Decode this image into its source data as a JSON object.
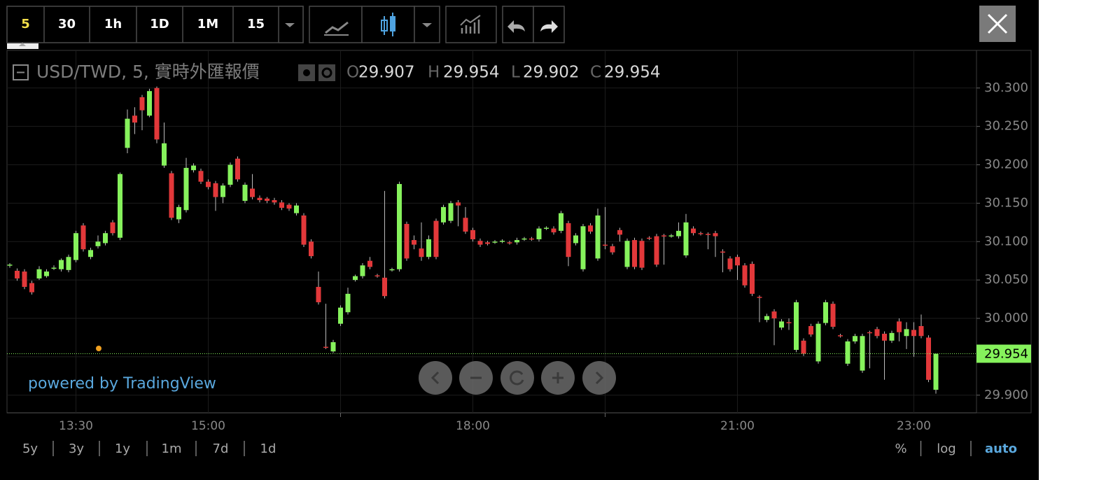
{
  "toolbar": {
    "intervals": [
      "5",
      "30",
      "1h",
      "1D",
      "1M",
      "15"
    ]
  },
  "chart_data": {
    "type": "candlestick",
    "title": "USD/TWD, 5, 實時外匯報價",
    "legend": [
      {
        "key": "O",
        "value": "29.907"
      },
      {
        "key": "H",
        "value": "29.954"
      },
      {
        "key": "L",
        "value": "29.902"
      },
      {
        "key": "C",
        "value": "29.954"
      }
    ],
    "categories": [
      null,
      null,
      null,
      null,
      null,
      null,
      null,
      null,
      null,
      "13:30",
      null,
      null,
      null,
      null,
      null,
      null,
      null,
      null,
      null,
      null,
      null,
      null,
      null,
      null,
      null,
      null,
      null,
      "15:00",
      null,
      null,
      null,
      null,
      null,
      null,
      null,
      null,
      null,
      null,
      null,
      null,
      null,
      null,
      null,
      null,
      null,
      null,
      null,
      null,
      null,
      null,
      null,
      null,
      null,
      null,
      null,
      null,
      null,
      null,
      null,
      null,
      null,
      null,
      null,
      "18:00",
      null,
      null,
      null,
      null,
      null,
      null,
      null,
      null,
      null,
      null,
      null,
      null,
      null,
      null,
      null,
      null,
      null,
      null,
      null,
      null,
      null,
      null,
      null,
      null,
      null,
      null,
      null,
      null,
      null,
      null,
      null,
      null,
      null,
      null,
      null,
      "21:00",
      null,
      null,
      null,
      null,
      null,
      null,
      null,
      null,
      null,
      null,
      null,
      null,
      null,
      null,
      null,
      null,
      null,
      null,
      null,
      null,
      null,
      null,
      null,
      "23:00",
      null,
      null,
      null
    ],
    "ohlc": [
      [
        30.069,
        30.072,
        30.066,
        30.07
      ],
      [
        30.062,
        30.065,
        30.049,
        30.052
      ],
      [
        30.061,
        30.064,
        30.038,
        30.041
      ],
      [
        30.046,
        30.049,
        30.031,
        30.034
      ],
      [
        30.052,
        30.068,
        30.05,
        30.064
      ],
      [
        30.055,
        30.064,
        30.053,
        30.061
      ],
      [
        30.065,
        30.069,
        30.063,
        30.066
      ],
      [
        30.064,
        30.078,
        30.061,
        30.076
      ],
      [
        30.063,
        30.083,
        30.06,
        30.08
      ],
      [
        30.076,
        30.114,
        30.073,
        30.111
      ],
      [
        30.121,
        30.124,
        30.087,
        30.09
      ],
      [
        30.08,
        30.092,
        30.077,
        30.089
      ],
      [
        30.094,
        30.108,
        30.091,
        30.1
      ],
      [
        30.098,
        30.114,
        30.095,
        30.111
      ],
      [
        30.125,
        30.128,
        30.108,
        30.111
      ],
      [
        30.105,
        30.19,
        30.102,
        30.188
      ],
      [
        30.222,
        30.272,
        30.215,
        30.26
      ],
      [
        30.264,
        30.275,
        30.24,
        30.255
      ],
      [
        30.288,
        30.291,
        30.245,
        30.271
      ],
      [
        30.264,
        30.299,
        30.262,
        30.296
      ],
      [
        30.3,
        30.302,
        30.228,
        30.233
      ],
      [
        30.199,
        30.255,
        30.196,
        30.228
      ],
      [
        30.189,
        30.192,
        30.128,
        30.131
      ],
      [
        30.129,
        30.148,
        30.124,
        30.145
      ],
      [
        30.141,
        30.209,
        30.138,
        30.196
      ],
      [
        30.193,
        30.202,
        30.19,
        30.199
      ],
      [
        30.192,
        30.195,
        30.175,
        30.178
      ],
      [
        30.178,
        30.181,
        30.168,
        30.171
      ],
      [
        30.176,
        30.179,
        30.14,
        30.158
      ],
      [
        30.158,
        30.176,
        30.15,
        30.173
      ],
      [
        30.174,
        30.203,
        30.171,
        30.2
      ],
      [
        30.208,
        30.211,
        30.178,
        30.181
      ],
      [
        30.153,
        30.177,
        30.15,
        30.174
      ],
      [
        30.169,
        30.188,
        30.155,
        30.158
      ],
      [
        30.157,
        30.16,
        30.151,
        30.154
      ],
      [
        30.156,
        30.158,
        30.15,
        30.153
      ],
      [
        30.154,
        30.157,
        30.148,
        30.151
      ],
      [
        30.151,
        30.154,
        30.141,
        30.144
      ],
      [
        30.148,
        30.15,
        30.14,
        30.143
      ],
      [
        30.137,
        30.15,
        30.134,
        30.147
      ],
      [
        30.134,
        30.137,
        30.093,
        30.096
      ],
      [
        30.1,
        30.103,
        30.078,
        30.081
      ],
      [
        30.041,
        30.061,
        30.018,
        30.021
      ],
      [
        29.963,
        30.019,
        29.96,
        29.962
      ],
      [
        29.957,
        29.972,
        29.955,
        29.969
      ],
      [
        29.993,
        30.017,
        29.99,
        30.014
      ],
      [
        30.008,
        30.04,
        30.005,
        30.032
      ],
      [
        30.05,
        30.057,
        30.048,
        30.055
      ],
      [
        30.055,
        30.072,
        30.052,
        30.069
      ],
      [
        30.075,
        30.08,
        30.064,
        30.067
      ],
      [
        30.056,
        30.058,
        30.053,
        30.055
      ],
      [
        30.053,
        30.166,
        30.026,
        30.029
      ],
      [
        30.063,
        30.066,
        30.061,
        30.064
      ],
      [
        30.064,
        30.178,
        30.061,
        30.175
      ],
      [
        30.123,
        30.126,
        30.075,
        30.078
      ],
      [
        30.102,
        30.108,
        30.09,
        30.096
      ],
      [
        30.091,
        30.125,
        30.075,
        30.08
      ],
      [
        30.08,
        30.108,
        30.077,
        30.103
      ],
      [
        30.127,
        30.13,
        30.077,
        30.08
      ],
      [
        30.125,
        30.148,
        30.122,
        30.145
      ],
      [
        30.127,
        30.153,
        30.124,
        30.15
      ],
      [
        30.151,
        30.154,
        30.12,
        30.147
      ],
      [
        30.131,
        30.145,
        30.11,
        30.113
      ],
      [
        30.115,
        30.118,
        30.1,
        30.103
      ],
      [
        30.101,
        30.104,
        30.093,
        30.096
      ],
      [
        30.099,
        30.101,
        30.095,
        30.097
      ],
      [
        30.099,
        30.102,
        30.097,
        30.1
      ],
      [
        30.1,
        30.103,
        30.098,
        30.101
      ],
      [
        30.099,
        30.101,
        30.096,
        30.098
      ],
      [
        30.099,
        30.105,
        30.096,
        30.102
      ],
      [
        30.103,
        30.106,
        30.101,
        30.104
      ],
      [
        30.104,
        30.106,
        30.101,
        30.103
      ],
      [
        30.103,
        30.12,
        30.1,
        30.117
      ],
      [
        30.117,
        30.12,
        30.115,
        30.118
      ],
      [
        30.117,
        30.12,
        30.109,
        30.112
      ],
      [
        30.114,
        30.14,
        30.111,
        30.137
      ],
      [
        30.124,
        30.127,
        30.068,
        30.08
      ],
      [
        30.098,
        30.111,
        30.095,
        30.108
      ],
      [
        30.064,
        30.123,
        30.061,
        30.12
      ],
      [
        30.121,
        30.124,
        30.11,
        30.113
      ],
      [
        30.078,
        30.143,
        30.075,
        30.134
      ],
      [
        30.096,
        30.145,
        30.09,
        30.095
      ],
      [
        30.094,
        30.097,
        30.083,
        30.086
      ],
      [
        30.115,
        30.118,
        30.1,
        30.109
      ],
      [
        30.067,
        30.104,
        30.064,
        30.101
      ],
      [
        30.102,
        30.105,
        30.064,
        30.067
      ],
      [
        30.101,
        30.104,
        30.063,
        30.066
      ],
      [
        30.105,
        30.107,
        30.102,
        30.104
      ],
      [
        30.107,
        30.11,
        30.067,
        30.07
      ],
      [
        30.108,
        30.11,
        30.07,
        30.107
      ],
      [
        30.107,
        30.11,
        30.105,
        30.108
      ],
      [
        30.107,
        30.125,
        30.104,
        30.114
      ],
      [
        30.082,
        30.136,
        30.079,
        30.125
      ],
      [
        30.117,
        30.12,
        30.108,
        30.111
      ],
      [
        30.111,
        30.113,
        30.108,
        30.11
      ],
      [
        30.11,
        30.112,
        30.09,
        30.109
      ],
      [
        30.111,
        30.114,
        30.08,
        30.107
      ],
      [
        30.087,
        30.09,
        30.06,
        30.086
      ],
      [
        30.078,
        30.081,
        30.061,
        30.064
      ],
      [
        30.08,
        30.083,
        30.05,
        30.069
      ],
      [
        30.069,
        30.072,
        30.04,
        30.043
      ],
      [
        30.071,
        30.074,
        30.029,
        30.032
      ],
      [
        30.028,
        30.03,
        29.995,
        30.027
      ],
      [
        29.998,
        30.006,
        29.995,
        30.003
      ],
      [
        30.009,
        30.012,
        29.965,
        30.0
      ],
      [
        29.988,
        29.999,
        29.985,
        29.996
      ],
      [
        29.995,
        30.0,
        29.985,
        29.994
      ],
      [
        29.959,
        30.024,
        29.956,
        30.021
      ],
      [
        29.971,
        29.974,
        29.951,
        29.954
      ],
      [
        29.99,
        29.993,
        29.976,
        29.979
      ],
      [
        29.944,
        29.996,
        29.941,
        29.993
      ],
      [
        29.994,
        30.024,
        29.991,
        30.021
      ],
      [
        30.019,
        30.022,
        29.986,
        29.989
      ],
      [
        29.978,
        29.98,
        29.975,
        29.977
      ],
      [
        29.941,
        29.973,
        29.938,
        29.97
      ],
      [
        29.97,
        29.98,
        29.967,
        29.977
      ],
      [
        29.932,
        29.98,
        29.929,
        29.977
      ],
      [
        29.982,
        29.984,
        29.935,
        29.981
      ],
      [
        29.986,
        29.989,
        29.974,
        29.977
      ],
      [
        29.98,
        29.983,
        29.92,
        29.971
      ],
      [
        29.971,
        29.984,
        29.968,
        29.981
      ],
      [
        29.996,
        30.0,
        29.97,
        29.982
      ],
      [
        29.977,
        29.995,
        29.96,
        29.986
      ],
      [
        29.985,
        29.995,
        29.95,
        29.977
      ],
      [
        29.99,
        30.005,
        29.974,
        29.977
      ],
      [
        29.975,
        29.978,
        29.917,
        29.92
      ],
      [
        29.907,
        29.954,
        29.902,
        29.954
      ]
    ],
    "up_color": "#86f25c",
    "down_color": "#e2383a",
    "ylim": [
      29.877,
      30.349
    ],
    "yticks": [
      {
        "value": 29.9,
        "label": "29.900"
      },
      {
        "value": 29.95,
        "label": "29.950"
      },
      {
        "value": 30.0,
        "label": "30.000"
      },
      {
        "value": 30.05,
        "label": "30.050"
      },
      {
        "value": 30.1,
        "label": "30.100"
      },
      {
        "value": 30.15,
        "label": "30.150"
      },
      {
        "value": 30.2,
        "label": "30.200"
      },
      {
        "value": 30.25,
        "label": "30.250"
      },
      {
        "value": 30.3,
        "label": "30.300"
      }
    ],
    "last_price_label": "29.954",
    "grid": true
  },
  "watermark": "powered by TradingView",
  "range_buttons": [
    "5y",
    "3y",
    "1y",
    "1m",
    "7d",
    "1d"
  ],
  "scale_buttons": [
    "%",
    "log",
    "auto"
  ]
}
